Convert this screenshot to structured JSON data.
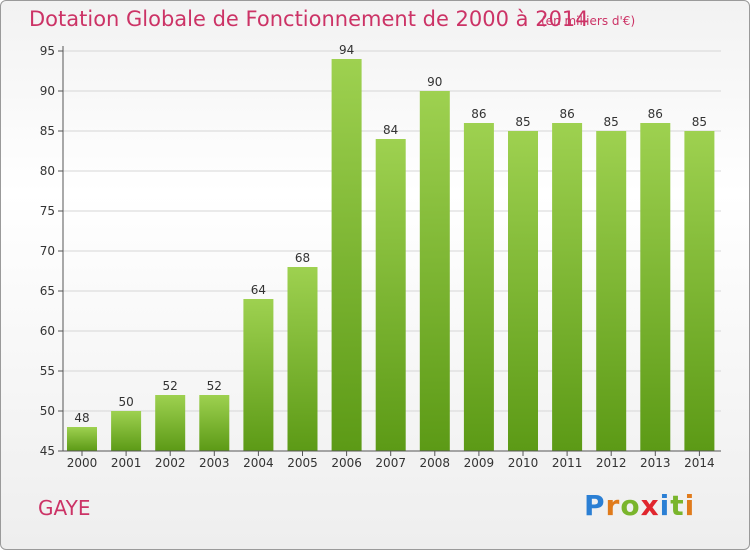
{
  "title": "Dotation Globale de Fonctionnement de 2000 à 2014",
  "subtitle": "(en milliers d'€)",
  "commune": "GAYE",
  "logo": {
    "letters": [
      "P",
      "r",
      "o",
      "x",
      "i",
      "t",
      "i"
    ],
    "colors": [
      "#2b7fd4",
      "#e07b1c",
      "#7ab52c",
      "#e0262e",
      "#2b7fd4",
      "#7ab52c",
      "#e07b1c"
    ]
  },
  "colors": {
    "bar_top": "#9ed150",
    "bar_bottom": "#5c9a16",
    "axis": "#555555",
    "grid": "#d6d6d6",
    "text": "#333333"
  },
  "chart_data": {
    "type": "bar",
    "categories": [
      "2000",
      "2001",
      "2002",
      "2003",
      "2004",
      "2005",
      "2006",
      "2007",
      "2008",
      "2009",
      "2010",
      "2011",
      "2012",
      "2013",
      "2014"
    ],
    "values": [
      48,
      50,
      52,
      52,
      64,
      68,
      94,
      84,
      90,
      86,
      85,
      86,
      85,
      86,
      85
    ],
    "ylim": [
      45,
      95
    ],
    "yticks": [
      45,
      50,
      55,
      60,
      65,
      70,
      75,
      80,
      85,
      90,
      95
    ],
    "grid": true,
    "data_labels": true
  }
}
